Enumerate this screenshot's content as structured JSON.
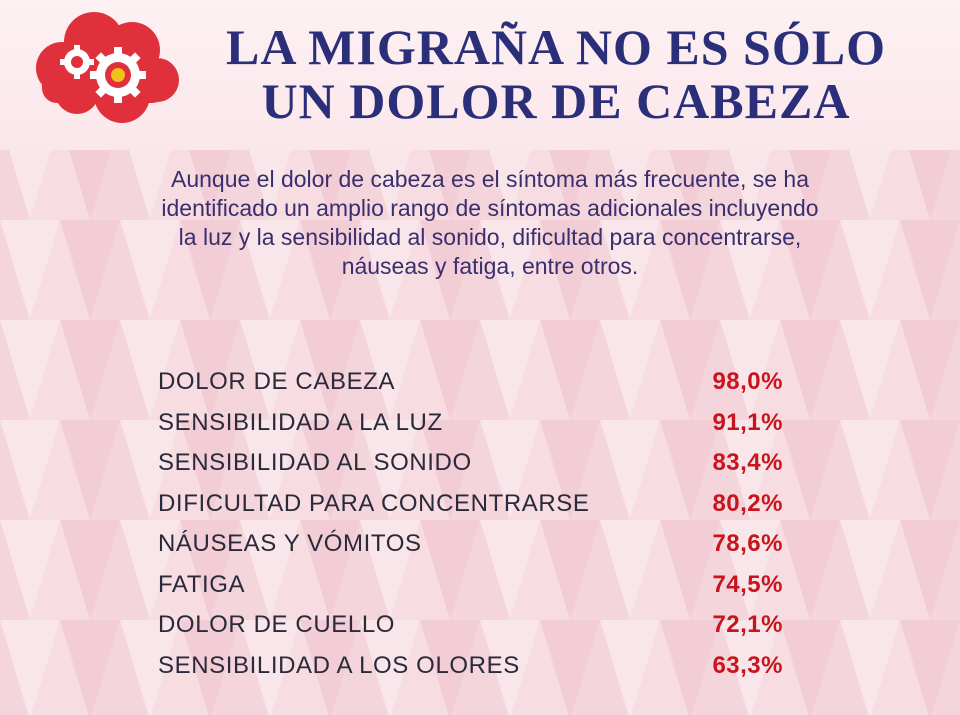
{
  "header": {
    "title_line1": "LA MIGRAÑA NO ES SÓLO",
    "title_line2": "UN DOLOR DE CABEZA",
    "title_color": "#2b2f7a"
  },
  "logo": {
    "icon": "cloud-gears-icon",
    "cloud_color": "#e0303c",
    "gear_color": "#ffffff",
    "gear_center_color": "#f2c21b"
  },
  "intro": {
    "line1": "Aunque el dolor de cabeza es el síntoma más frecuente, se ha",
    "line2": "identificado un amplio rango de síntomas adicionales incluyendo",
    "line3": "la luz y la sensibilidad al sonido, dificultad para concentrarse,",
    "line4": "náuseas y fatiga, entre otros."
  },
  "symptoms": [
    {
      "name": "DOLOR DE CABEZA",
      "percent": "98,0%"
    },
    {
      "name": "SENSIBILIDAD A LA LUZ",
      "percent": "91,1%"
    },
    {
      "name": "SENSIBILIDAD AL SONIDO",
      "percent": "83,4%"
    },
    {
      "name": "DIFICULTAD PARA CONCENTRARSE",
      "percent": "80,2%"
    },
    {
      "name": "NÁUSEAS Y VÓMITOS",
      "percent": "78,6%"
    },
    {
      "name": "FATIGA",
      "percent": "74,5%"
    },
    {
      "name": "DOLOR DE CUELLO",
      "percent": "72,1%"
    },
    {
      "name": "SENSIBILIDAD A LOS OLORES",
      "percent": "63,3%"
    }
  ],
  "colors": {
    "background": "#f7dde2",
    "percent": "#c8141c",
    "symptom_text": "#2a2a3a",
    "intro_text": "#3a2f6e"
  }
}
